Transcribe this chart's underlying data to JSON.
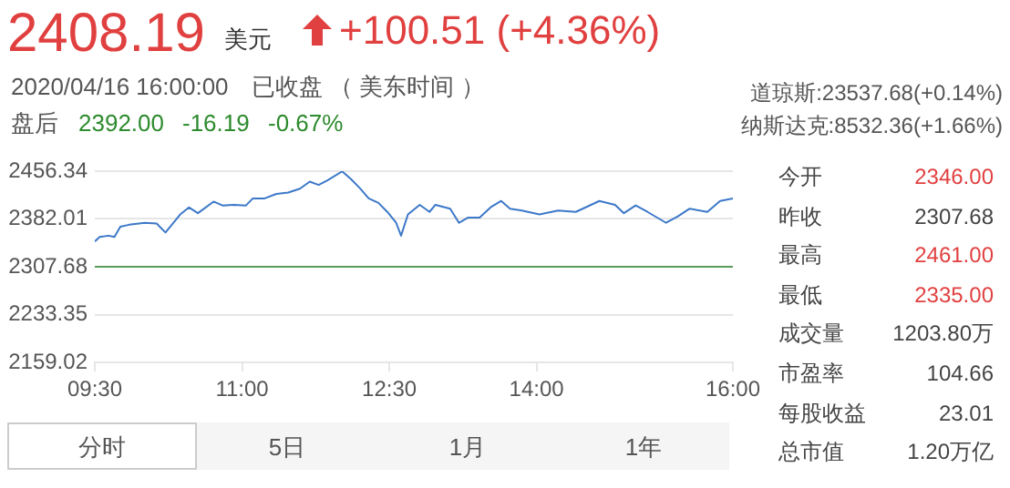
{
  "chart_data": {
    "type": "line",
    "annotations": [
      "2408.19",
      "美元",
      "+100.51 (+4.36%)",
      "2020/04/16 16:00:00",
      "已收盘 （ 美东时间 ）",
      "盘后",
      "2392.00",
      "-16.19",
      "-0.67%",
      "道琼斯:23537.68(+0.14%)",
      "纳斯达克:8532.36(+1.66%)",
      "今开",
      "2346.00",
      "昨收",
      "2307.68",
      "最高",
      "2461.00",
      "最低",
      "2335.00",
      "成交量",
      "1203.80万",
      "市盈率",
      "104.66",
      "每股收益",
      "23.01",
      "总市值",
      "1.20万亿",
      "分时",
      "5日",
      "1月",
      "1年"
    ],
    "x": [
      9.5,
      9.55,
      9.64,
      9.7,
      9.76,
      9.85,
      10.01,
      10.13,
      10.22,
      10.37,
      10.46,
      10.55,
      10.71,
      10.8,
      10.92,
      11.04,
      11.11,
      11.23,
      11.35,
      11.47,
      11.59,
      11.69,
      11.78,
      11.87,
      12.02,
      12.11,
      12.2,
      12.29,
      12.39,
      12.48,
      12.57,
      12.62,
      12.69,
      12.81,
      12.91,
      12.97,
      13.12,
      13.21,
      13.3,
      13.42,
      13.54,
      13.64,
      13.73,
      13.85,
      14.03,
      14.22,
      14.4,
      14.64,
      14.8,
      14.89,
      15.01,
      15.13,
      15.32,
      15.44,
      15.56,
      15.74,
      15.87,
      16.0
    ],
    "series": [
      {
        "color": "#3c78c8",
        "values": [
          2347,
          2354,
          2356,
          2354,
          2370,
          2373,
          2376,
          2375,
          2361,
          2389,
          2400,
          2391,
          2409,
          2403,
          2404,
          2403,
          2414,
          2414,
          2421,
          2423,
          2429,
          2440,
          2435,
          2442,
          2456,
          2444,
          2430,
          2414,
          2407,
          2393,
          2376,
          2356,
          2389,
          2404,
          2393,
          2404,
          2398,
          2376,
          2384,
          2384,
          2401,
          2410,
          2398,
          2395,
          2389,
          2395,
          2393,
          2410,
          2404,
          2391,
          2403,
          2393,
          2376,
          2386,
          2398,
          2393,
          2410,
          2414
        ]
      }
    ],
    "xlim": [
      9.5,
      16
    ],
    "xticks": [
      {
        "value": 9.5,
        "label": "09:30"
      },
      {
        "value": 11,
        "label": "11:00"
      },
      {
        "value": 12.5,
        "label": "12:30"
      },
      {
        "value": 14,
        "label": "14:00"
      },
      {
        "value": 16,
        "label": "16:00"
      }
    ],
    "ylim": [
      2159.02,
      2456.34
    ],
    "yticks": [
      2159.02,
      2233.35,
      2307.68,
      2382.01,
      2456.34
    ],
    "ref_lines": [
      {
        "axis": "y",
        "value": 2307.68,
        "color": "#5b9b5b"
      }
    ],
    "grid": "y",
    "legend": false,
    "marker": "none",
    "line_style": "solid"
  }
}
